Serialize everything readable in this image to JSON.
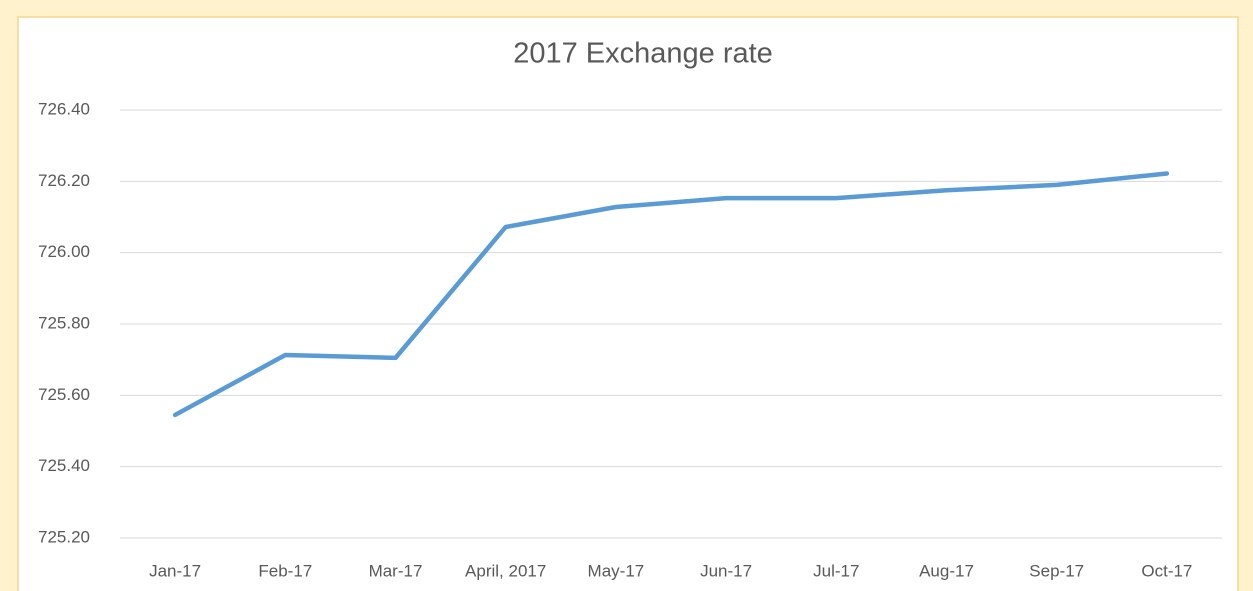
{
  "chart_data": {
    "type": "line",
    "title": "2017 Exchange rate",
    "categories": [
      "Jan-17",
      "Feb-17",
      "Mar-17",
      "April, 2017",
      "May-17",
      "Jun-17",
      "Jul-17",
      "Aug-17",
      "Sep-17",
      "Oct-17"
    ],
    "values": [
      725.545,
      725.713,
      725.705,
      726.072,
      726.128,
      726.153,
      726.153,
      726.175,
      726.19,
      726.222
    ],
    "color": "#5b9bd5",
    "ylim": [
      725.2,
      726.4
    ],
    "yticks": [
      {
        "value": 725.2,
        "label": "725.20"
      },
      {
        "value": 725.4,
        "label": "725.40"
      },
      {
        "value": 725.6,
        "label": "725.60"
      },
      {
        "value": 725.8,
        "label": "725.80"
      },
      {
        "value": 726.0,
        "label": "726.00"
      },
      {
        "value": 726.2,
        "label": "726.20"
      },
      {
        "value": 726.4,
        "label": "726.40"
      }
    ],
    "grid": true
  }
}
